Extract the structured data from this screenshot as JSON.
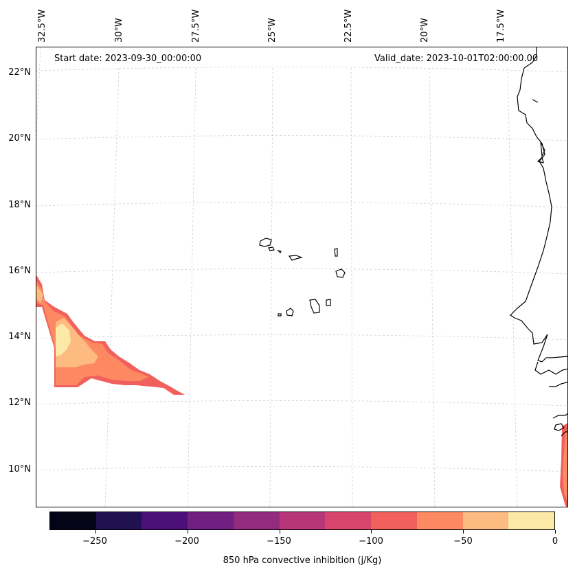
{
  "header": {
    "start_date": "Start date: 2023-09-30_00:00:00",
    "valid_date": "Valid_date: 2023-10-01T02:00:00.00"
  },
  "map": {
    "longitude_labels": [
      "32.5°W",
      "30°W",
      "27.5°W",
      "25°W",
      "22.5°W",
      "20°W",
      "17.5°W"
    ],
    "latitude_labels": [
      "22°N",
      "20°N",
      "18°N",
      "16°N",
      "14°N",
      "12°N",
      "10°N"
    ],
    "gridlines": true,
    "coastline_color": "#000000",
    "islands": "Cabo Verde",
    "fill_regions": [
      {
        "name": "western-cin-patch",
        "levels": [
          -100,
          -75,
          -50,
          -25
        ]
      },
      {
        "name": "southeast-cin-patch",
        "levels": [
          -100,
          -75
        ]
      }
    ]
  },
  "colorbar": {
    "title": "850 hPa convective inhibition (j/Kg)",
    "ticks": [
      "−250",
      "−200",
      "−150",
      "−100",
      "−50",
      "0"
    ],
    "tick_values": [
      -250,
      -200,
      -150,
      -100,
      -50,
      0
    ],
    "range": [
      -275,
      0
    ],
    "colors": [
      "#050416",
      "#221150",
      "#4c107a",
      "#711f81",
      "#932b7f",
      "#b63679",
      "#d8456c",
      "#f1605d",
      "#fc8961",
      "#febb81",
      "#fde9a7"
    ]
  }
}
